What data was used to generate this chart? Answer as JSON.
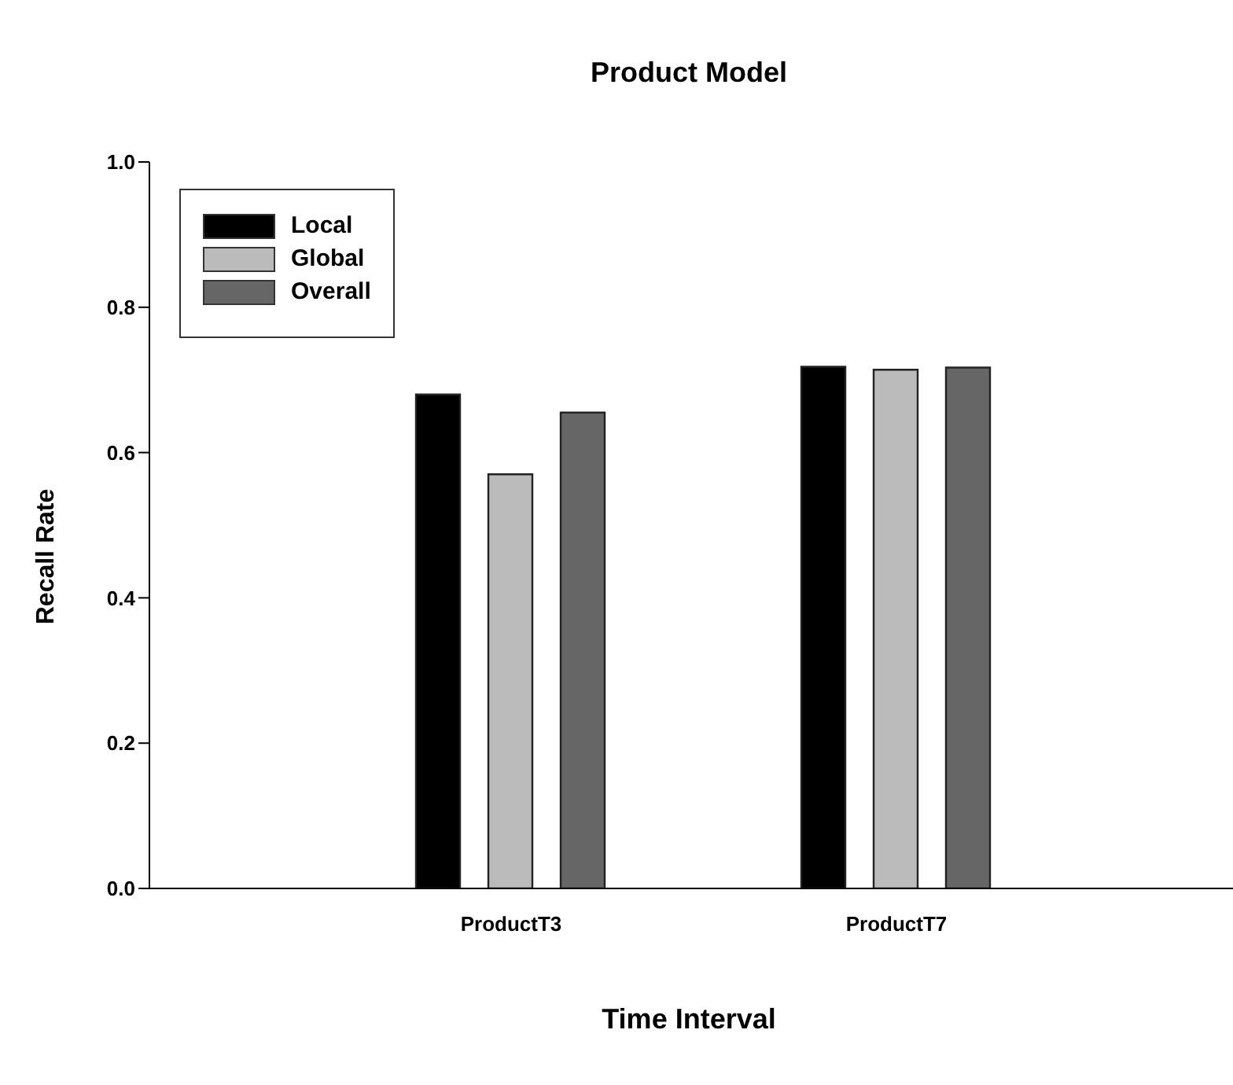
{
  "chart_data": {
    "type": "bar",
    "title": "Product Model",
    "xlabel": "Time Interval",
    "ylabel": "Recall Rate",
    "categories": [
      "ProductT3",
      "ProductT7"
    ],
    "series": [
      {
        "name": "Local",
        "color": "#000000",
        "values": [
          0.68,
          0.718
        ]
      },
      {
        "name": "Global",
        "color": "#bbbbbb",
        "values": [
          0.57,
          0.714
        ]
      },
      {
        "name": "Overall",
        "color": "#666666",
        "values": [
          0.655,
          0.717
        ]
      }
    ],
    "ylim": [
      0,
      1
    ],
    "yticks": [
      {
        "value": 0,
        "label": "0.0"
      },
      0.2,
      0.4,
      0.6,
      0.8,
      {
        "value": 1,
        "label": "1.0"
      }
    ],
    "grid": false,
    "legend": "top left"
  }
}
